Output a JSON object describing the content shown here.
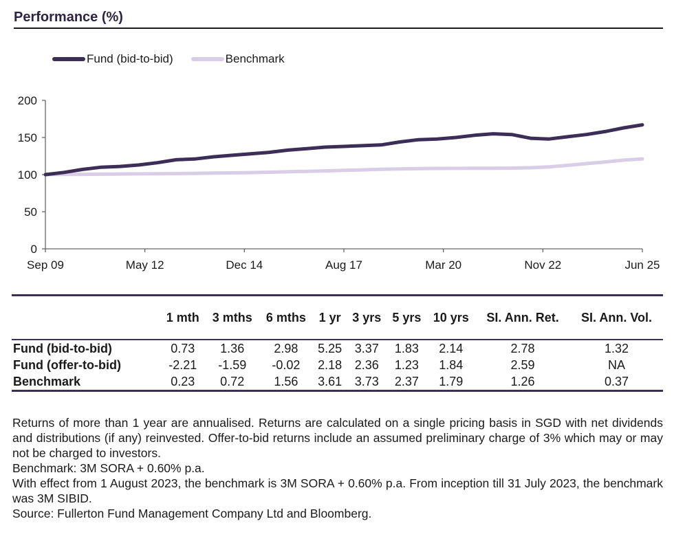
{
  "section": {
    "title": "Performance (%)"
  },
  "colors": {
    "fund": "#3d2e57",
    "benchmark": "#d9cde8",
    "axis": "#666666"
  },
  "legend": [
    {
      "label": "Fund (bid-to-bid)",
      "color": "#3d2e57"
    },
    {
      "label": "Benchmark",
      "color": "#d9cde8"
    }
  ],
  "chart_data": {
    "type": "line",
    "title": "",
    "xlabel": "",
    "ylabel": "",
    "ylim": [
      0,
      200
    ],
    "yticks": [
      0,
      50,
      100,
      150,
      200
    ],
    "grid": false,
    "legend_position": "top-left",
    "xtick_labels": [
      "Sep 09",
      "May 12",
      "Dec 14",
      "Aug 17",
      "Mar 20",
      "Nov 22",
      "Jun 25"
    ],
    "x": [
      "Sep 09",
      "Mar 10",
      "Sep 10",
      "Mar 11",
      "Sep 11",
      "Mar 12",
      "Sep 12",
      "Mar 13",
      "Sep 13",
      "Mar 14",
      "Sep 14",
      "Mar 15",
      "Sep 15",
      "Mar 16",
      "Sep 16",
      "Mar 17",
      "Sep 17",
      "Mar 18",
      "Sep 18",
      "Mar 19",
      "Sep 19",
      "Mar 20",
      "Sep 20",
      "Mar 21",
      "Sep 21",
      "Mar 22",
      "Sep 22",
      "Mar 23",
      "Sep 23",
      "Mar 24",
      "Sep 24",
      "Mar 25",
      "Jun 25"
    ],
    "series": [
      {
        "name": "Fund (bid-to-bid)",
        "values": [
          100,
          103,
          107,
          110,
          111,
          113,
          116,
          120,
          121,
          124,
          126,
          128,
          130,
          133,
          135,
          137,
          138,
          139,
          140,
          144,
          147,
          148,
          150,
          153,
          155,
          154,
          149,
          148,
          151,
          154,
          158,
          163,
          167
        ]
      },
      {
        "name": "Benchmark",
        "values": [
          100,
          100.2,
          100.4,
          100.6,
          100.8,
          101.0,
          101.2,
          101.4,
          101.7,
          102.0,
          102.3,
          102.7,
          103.2,
          103.8,
          104.4,
          105.0,
          105.7,
          106.4,
          107.1,
          107.7,
          108.1,
          108.3,
          108.4,
          108.5,
          108.6,
          108.8,
          109.3,
          110.5,
          112.5,
          114.8,
          117.0,
          119.5,
          121
        ]
      }
    ]
  },
  "table": {
    "headers": [
      "1 mth",
      "3 mths",
      "6 mths",
      "1 yr",
      "3 yrs",
      "5 yrs",
      "10 yrs",
      "SI. Ann. Ret.",
      "SI. Ann. Vol."
    ],
    "rows": [
      {
        "label": "Fund (bid-to-bid)",
        "values": [
          "0.73",
          "1.36",
          "2.98",
          "5.25",
          "3.37",
          "1.83",
          "2.14",
          "2.78",
          "1.32"
        ]
      },
      {
        "label": "Fund (offer-to-bid)",
        "values": [
          "-2.21",
          "-1.59",
          "-0.02",
          "2.18",
          "2.36",
          "1.23",
          "1.84",
          "2.59",
          "NA"
        ]
      },
      {
        "label": "Benchmark",
        "values": [
          "0.23",
          "0.72",
          "1.56",
          "3.61",
          "3.73",
          "2.37",
          "1.79",
          "1.26",
          "0.37"
        ]
      }
    ]
  },
  "notes": [
    "Returns of more than 1 year are annualised. Returns are calculated on a single pricing basis in SGD with net dividends and distributions (if any) reinvested. Offer-to-bid returns include an assumed preliminary charge of 3% which may or may not be charged to investors.",
    "Benchmark: 3M SORA + 0.60% p.a.",
    "With effect from 1 August 2023, the benchmark is 3M SORA + 0.60% p.a. From inception till 31 July 2023, the benchmark was 3M SIBID.",
    "Source: Fullerton Fund Management Company Ltd and Bloomberg."
  ]
}
